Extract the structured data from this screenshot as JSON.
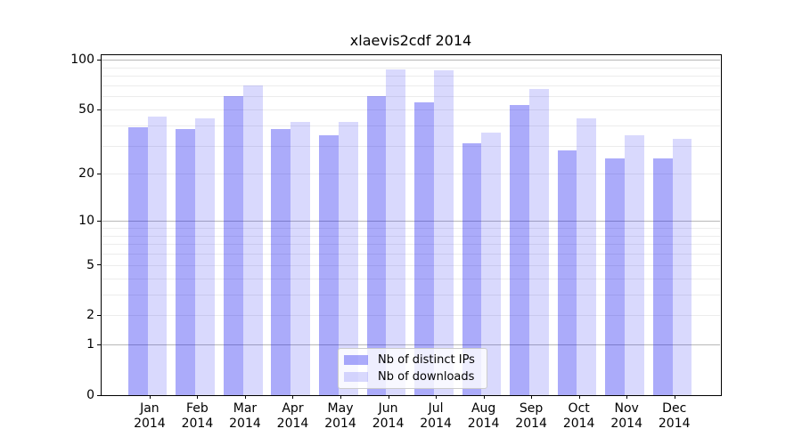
{
  "chart_data": {
    "type": "bar",
    "title": "xlaevis2cdf 2014",
    "year_label": "2014",
    "categories": [
      "Jan",
      "Feb",
      "Mar",
      "Apr",
      "May",
      "Jun",
      "Jul",
      "Aug",
      "Sep",
      "Oct",
      "Nov",
      "Dec"
    ],
    "series": [
      {
        "name": "Nb of distinct IPs",
        "color": "#0a0af0",
        "alpha": 0.34,
        "values": [
          39,
          38,
          60,
          38,
          35,
          60,
          55,
          31,
          53,
          28,
          25,
          25
        ]
      },
      {
        "name": "Nb of downloads",
        "color": "#0a0af0",
        "alpha": 0.155,
        "values": [
          45,
          44,
          70,
          42,
          42,
          88,
          86,
          36,
          67,
          44,
          35,
          33
        ]
      }
    ],
    "yscale": "log1p",
    "ylim": [
      0,
      100
    ],
    "y_ticks": [
      0,
      1,
      2,
      5,
      10,
      20,
      50,
      100
    ],
    "y_tick_labels": [
      "0",
      "1",
      "2",
      "5",
      "10",
      "20",
      "50",
      "100"
    ],
    "major_gridlines": [
      1,
      10,
      100
    ],
    "minor_gridlines": [
      2,
      3,
      4,
      5,
      6,
      7,
      8,
      9,
      20,
      30,
      40,
      50,
      60,
      70,
      80,
      90
    ],
    "grid": true,
    "legend_position": "lower center",
    "gridline_major_color": "#b8b8b8",
    "gridline_minor_color": "#ececec"
  }
}
